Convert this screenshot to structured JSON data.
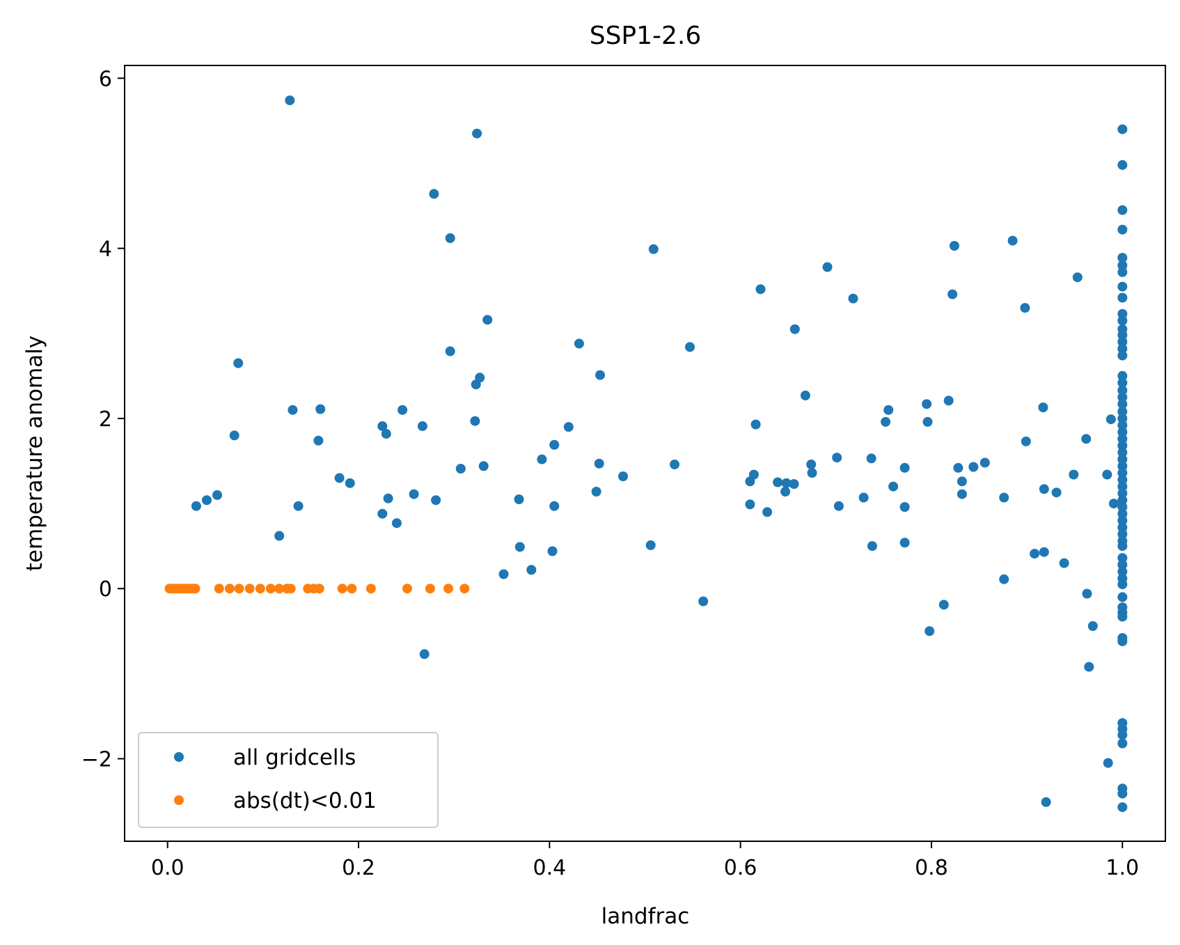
{
  "chart_data": {
    "type": "scatter",
    "title": "SSP1-2.6",
    "xlabel": "landfrac",
    "ylabel": "temperature anomaly",
    "xlim": [
      -0.045,
      1.045
    ],
    "ylim": [
      -2.97,
      6.15
    ],
    "xticks": [
      {
        "value": 0.0,
        "label": "0.0"
      },
      {
        "value": 0.2,
        "label": "0.2"
      },
      {
        "value": 0.4,
        "label": "0.4"
      },
      {
        "value": 0.6,
        "label": "0.6"
      },
      {
        "value": 0.8,
        "label": "0.8"
      },
      {
        "value": 1.0,
        "label": "1.0"
      }
    ],
    "yticks": [
      {
        "value": -2,
        "label": "−2"
      },
      {
        "value": 0,
        "label": "0"
      },
      {
        "value": 2,
        "label": "2"
      },
      {
        "value": 4,
        "label": "4"
      },
      {
        "value": 6,
        "label": "6"
      }
    ],
    "grid": false,
    "legend_position": "lower-left",
    "series": [
      {
        "name": "all gridcells",
        "color": "#1f77b4",
        "points": [
          [
            0.128,
            5.74
          ],
          [
            0.324,
            5.35
          ],
          [
            0.279,
            4.64
          ],
          [
            0.296,
            4.12
          ],
          [
            0.335,
            3.16
          ],
          [
            0.296,
            2.79
          ],
          [
            0.074,
            2.65
          ],
          [
            0.327,
            2.48
          ],
          [
            0.323,
            2.4
          ],
          [
            0.131,
            2.1
          ],
          [
            0.16,
            2.11
          ],
          [
            0.246,
            2.1
          ],
          [
            0.322,
            1.97
          ],
          [
            0.225,
            1.91
          ],
          [
            0.267,
            1.91
          ],
          [
            0.229,
            1.82
          ],
          [
            0.07,
            1.8
          ],
          [
            0.158,
            1.74
          ],
          [
            0.331,
            1.44
          ],
          [
            0.307,
            1.41
          ],
          [
            0.18,
            1.3
          ],
          [
            0.191,
            1.24
          ],
          [
            0.258,
            1.11
          ],
          [
            0.052,
            1.1
          ],
          [
            0.041,
            1.04
          ],
          [
            0.231,
            1.06
          ],
          [
            0.281,
            1.04
          ],
          [
            0.03,
            0.97
          ],
          [
            0.137,
            0.97
          ],
          [
            0.225,
            0.88
          ],
          [
            0.24,
            0.77
          ],
          [
            0.117,
            0.62
          ],
          [
            0.269,
            -0.77
          ],
          [
            0.509,
            3.99
          ],
          [
            0.431,
            2.88
          ],
          [
            0.547,
            2.84
          ],
          [
            0.453,
            2.51
          ],
          [
            0.42,
            1.9
          ],
          [
            0.405,
            1.69
          ],
          [
            0.392,
            1.52
          ],
          [
            0.452,
            1.47
          ],
          [
            0.531,
            1.46
          ],
          [
            0.477,
            1.32
          ],
          [
            0.449,
            1.14
          ],
          [
            0.368,
            1.05
          ],
          [
            0.405,
            0.97
          ],
          [
            0.369,
            0.49
          ],
          [
            0.506,
            0.51
          ],
          [
            0.403,
            0.44
          ],
          [
            0.381,
            0.22
          ],
          [
            0.352,
            0.17
          ],
          [
            0.561,
            -0.15
          ],
          [
            0.691,
            3.78
          ],
          [
            0.621,
            3.52
          ],
          [
            0.718,
            3.41
          ],
          [
            0.657,
            3.05
          ],
          [
            0.668,
            2.27
          ],
          [
            0.616,
            1.93
          ],
          [
            0.755,
            2.1
          ],
          [
            0.752,
            1.96
          ],
          [
            0.701,
            1.54
          ],
          [
            0.737,
            1.53
          ],
          [
            0.674,
            1.46
          ],
          [
            0.675,
            1.36
          ],
          [
            0.614,
            1.34
          ],
          [
            0.61,
            1.26
          ],
          [
            0.639,
            1.25
          ],
          [
            0.648,
            1.24
          ],
          [
            0.656,
            1.23
          ],
          [
            0.647,
            1.14
          ],
          [
            0.61,
            0.99
          ],
          [
            0.628,
            0.9
          ],
          [
            0.703,
            0.97
          ],
          [
            0.729,
            1.07
          ],
          [
            0.772,
            1.42
          ],
          [
            0.76,
            1.2
          ],
          [
            0.772,
            0.96
          ],
          [
            0.738,
            0.5
          ],
          [
            0.772,
            0.54
          ],
          [
            0.824,
            4.03
          ],
          [
            0.885,
            4.09
          ],
          [
            0.822,
            3.46
          ],
          [
            0.898,
            3.3
          ],
          [
            0.953,
            3.66
          ],
          [
            0.795,
            2.17
          ],
          [
            0.818,
            2.21
          ],
          [
            0.796,
            1.96
          ],
          [
            0.917,
            2.13
          ],
          [
            0.899,
            1.73
          ],
          [
            0.962,
            1.76
          ],
          [
            0.856,
            1.48
          ],
          [
            0.844,
            1.43
          ],
          [
            0.828,
            1.42
          ],
          [
            0.832,
            1.26
          ],
          [
            0.949,
            1.34
          ],
          [
            0.918,
            1.17
          ],
          [
            0.931,
            1.13
          ],
          [
            0.832,
            1.11
          ],
          [
            0.876,
            1.07
          ],
          [
            0.984,
            1.34
          ],
          [
            0.988,
            1.99
          ],
          [
            0.991,
            1.0
          ],
          [
            0.908,
            0.41
          ],
          [
            0.918,
            0.43
          ],
          [
            0.939,
            0.3
          ],
          [
            0.876,
            0.11
          ],
          [
            0.963,
            -0.06
          ],
          [
            0.813,
            -0.19
          ],
          [
            0.969,
            -0.44
          ],
          [
            0.798,
            -0.5
          ],
          [
            0.965,
            -0.92
          ],
          [
            0.985,
            -2.05
          ],
          [
            0.92,
            -2.51
          ],
          [
            1.0,
            5.4
          ],
          [
            1.0,
            4.98
          ],
          [
            1.0,
            4.45
          ],
          [
            1.0,
            4.22
          ],
          [
            1.0,
            3.89
          ],
          [
            1.0,
            3.8
          ],
          [
            1.0,
            3.72
          ],
          [
            1.0,
            3.55
          ],
          [
            1.0,
            3.42
          ],
          [
            1.0,
            3.23
          ],
          [
            1.0,
            3.15
          ],
          [
            1.0,
            3.05
          ],
          [
            1.0,
            2.98
          ],
          [
            1.0,
            2.9
          ],
          [
            1.0,
            2.82
          ],
          [
            1.0,
            2.74
          ],
          [
            1.0,
            2.5
          ],
          [
            1.0,
            2.42
          ],
          [
            1.0,
            2.33
          ],
          [
            1.0,
            2.25
          ],
          [
            1.0,
            2.17
          ],
          [
            1.0,
            2.08
          ],
          [
            1.0,
            2.0
          ],
          [
            1.0,
            1.92
          ],
          [
            1.0,
            1.84
          ],
          [
            1.0,
            1.76
          ],
          [
            1.0,
            1.68
          ],
          [
            1.0,
            1.6
          ],
          [
            1.0,
            1.52
          ],
          [
            1.0,
            1.44
          ],
          [
            1.0,
            1.36
          ],
          [
            1.0,
            1.28
          ],
          [
            1.0,
            1.2
          ],
          [
            1.0,
            1.12
          ],
          [
            1.0,
            1.04
          ],
          [
            1.0,
            0.96
          ],
          [
            1.0,
            0.88
          ],
          [
            1.0,
            0.8
          ],
          [
            1.0,
            0.72
          ],
          [
            1.0,
            0.64
          ],
          [
            1.0,
            0.56
          ],
          [
            1.0,
            0.5
          ],
          [
            1.0,
            0.36
          ],
          [
            1.0,
            0.28
          ],
          [
            1.0,
            0.2
          ],
          [
            1.0,
            0.12
          ],
          [
            1.0,
            0.05
          ],
          [
            1.0,
            -0.1
          ],
          [
            1.0,
            -0.22
          ],
          [
            1.0,
            -0.28
          ],
          [
            1.0,
            -0.33
          ],
          [
            1.0,
            -0.58
          ],
          [
            1.0,
            -0.62
          ],
          [
            1.0,
            -1.58
          ],
          [
            1.0,
            -1.65
          ],
          [
            1.0,
            -1.72
          ],
          [
            1.0,
            -1.82
          ],
          [
            1.0,
            -2.35
          ],
          [
            1.0,
            -2.41
          ],
          [
            1.0,
            -2.57
          ]
        ]
      },
      {
        "name": "abs(dt)<0.01",
        "color": "#ff7f0e",
        "points": [
          [
            0.002,
            0.0
          ],
          [
            0.005,
            0.0
          ],
          [
            0.008,
            0.0
          ],
          [
            0.011,
            0.0
          ],
          [
            0.014,
            0.0
          ],
          [
            0.017,
            0.0
          ],
          [
            0.02,
            0.0
          ],
          [
            0.023,
            0.0
          ],
          [
            0.026,
            0.0
          ],
          [
            0.029,
            0.0
          ],
          [
            0.054,
            0.0
          ],
          [
            0.065,
            0.0
          ],
          [
            0.075,
            0.0
          ],
          [
            0.086,
            0.0
          ],
          [
            0.097,
            0.0
          ],
          [
            0.108,
            0.0
          ],
          [
            0.117,
            0.0
          ],
          [
            0.125,
            0.0
          ],
          [
            0.129,
            0.0
          ],
          [
            0.147,
            0.0
          ],
          [
            0.153,
            0.0
          ],
          [
            0.159,
            0.0
          ],
          [
            0.183,
            0.0
          ],
          [
            0.193,
            0.0
          ],
          [
            0.213,
            0.0
          ],
          [
            0.251,
            0.0
          ],
          [
            0.275,
            0.0
          ],
          [
            0.294,
            0.0
          ],
          [
            0.311,
            0.0
          ]
        ]
      }
    ]
  }
}
